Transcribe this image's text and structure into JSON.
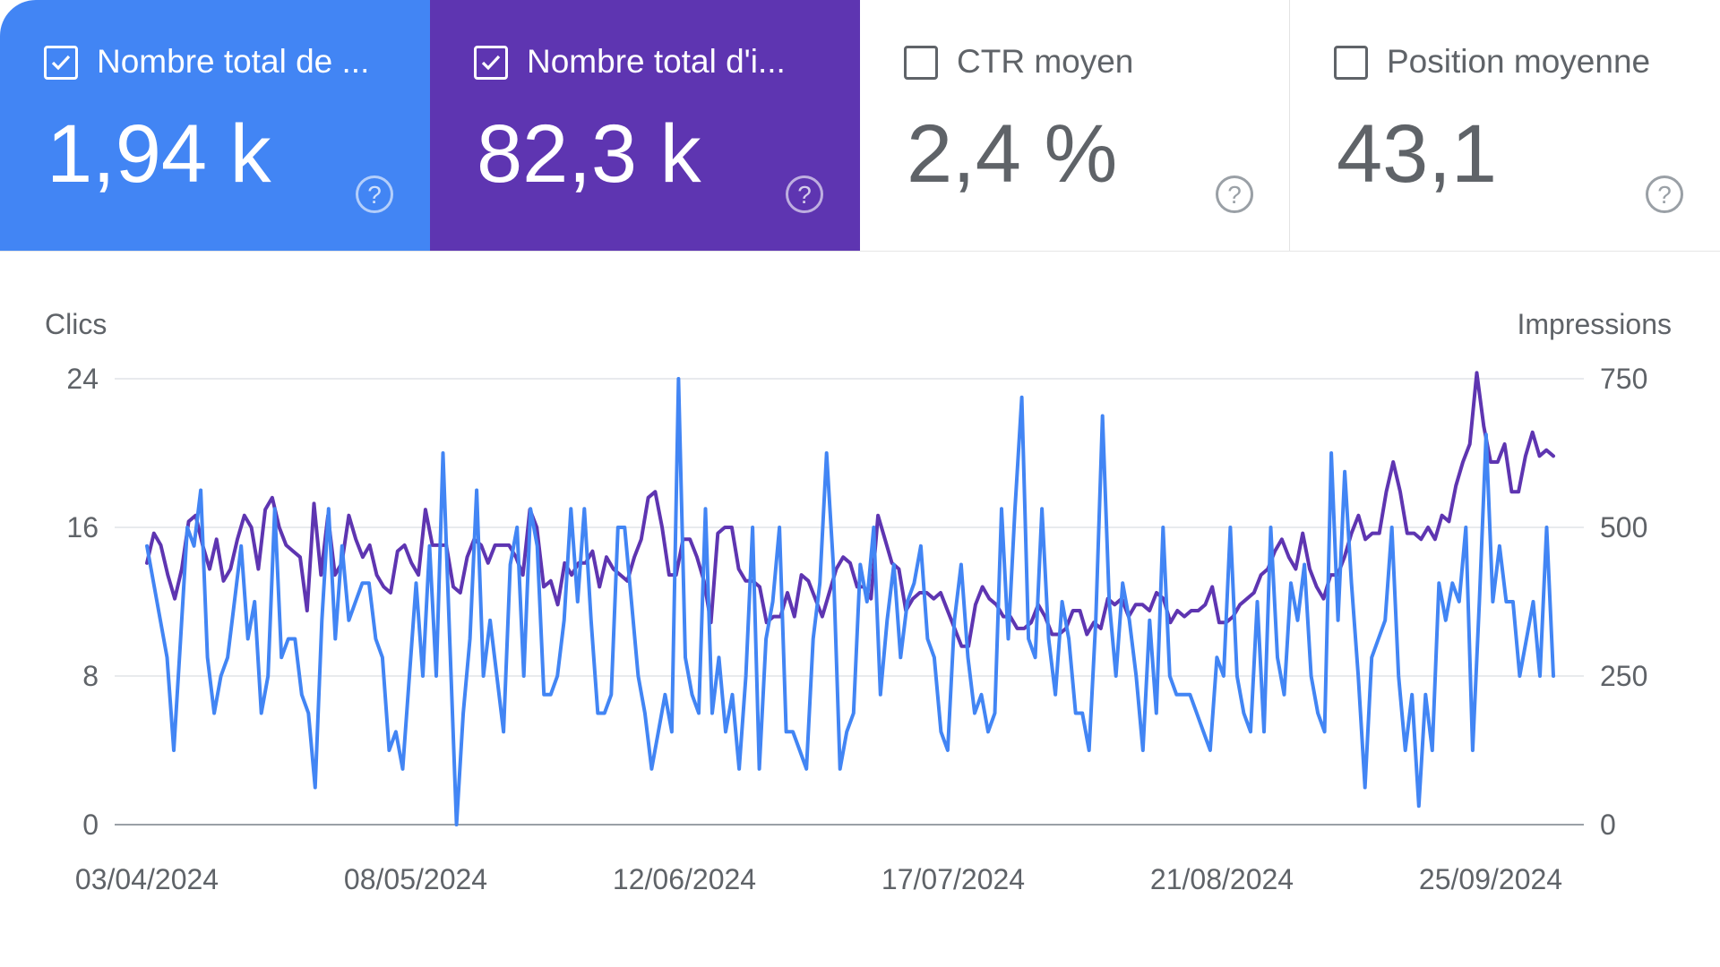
{
  "metrics": [
    {
      "label": "Nombre total de ...",
      "value": "1,94 k",
      "checked": true,
      "color": "#4285f4"
    },
    {
      "label": "Nombre total d'i...",
      "value": "82,3 k",
      "checked": true,
      "color": "#5e35b1"
    },
    {
      "label": "CTR moyen",
      "value": "2,4 %",
      "checked": false
    },
    {
      "label": "Position moyenne",
      "value": "43,1",
      "checked": false
    }
  ],
  "help_icon": "?",
  "chart_data": {
    "type": "line",
    "ylabel_left": "Clics",
    "ylabel_right": "Impressions",
    "y_left_ticks": [
      "0",
      "8",
      "16",
      "24"
    ],
    "y_right_ticks": [
      "0",
      "250",
      "500",
      "750"
    ],
    "ylim_left": [
      0,
      24
    ],
    "ylim_right": [
      0,
      750
    ],
    "x_tick_labels": [
      "03/04/2024",
      "08/05/2024",
      "12/06/2024",
      "17/07/2024",
      "21/08/2024",
      "25/09/2024"
    ],
    "x_start": "2024-04-03",
    "x_end": "2024-10-01",
    "grid": true,
    "series": [
      {
        "axis": "left",
        "color": "#4285f4",
        "values": [
          15,
          13,
          11,
          9,
          4,
          10,
          16,
          15,
          18,
          9,
          6,
          8,
          9,
          12,
          15,
          10,
          12,
          6,
          8,
          17,
          9,
          10,
          10,
          7,
          6,
          2,
          11,
          17,
          10,
          15,
          11,
          12,
          13,
          13,
          10,
          9,
          4,
          5,
          3,
          8,
          13,
          8,
          15,
          8,
          20,
          10,
          0,
          6,
          10,
          18,
          8,
          11,
          8,
          5,
          14,
          16,
          8,
          17,
          15,
          7,
          7,
          8,
          11,
          17,
          12,
          17,
          11,
          6,
          6,
          7,
          16,
          16,
          12,
          8,
          6,
          3,
          5,
          7,
          5,
          24,
          9,
          7,
          6,
          17,
          6,
          9,
          5,
          7,
          3,
          8,
          16,
          3,
          10,
          12,
          16,
          5,
          5,
          4,
          3,
          10,
          13,
          20,
          14,
          3,
          5,
          6,
          14,
          12,
          16,
          7,
          11,
          14,
          9,
          12,
          13,
          15,
          10,
          9,
          5,
          4,
          11,
          14,
          9,
          6,
          7,
          5,
          6,
          17,
          10,
          17,
          23,
          10,
          9,
          17,
          10,
          7,
          12,
          10,
          6,
          6,
          4,
          11,
          22,
          12,
          8,
          13,
          11,
          8,
          4,
          11,
          6,
          16,
          8,
          7,
          7,
          7,
          6,
          5,
          4,
          9,
          8,
          16,
          8,
          6,
          5,
          12,
          5,
          16,
          9,
          7,
          13,
          11,
          14,
          8,
          6,
          5,
          20,
          11,
          19,
          13,
          8,
          2,
          9,
          10,
          11,
          16,
          8,
          4,
          7,
          1,
          7,
          4,
          13,
          11,
          13,
          12,
          16,
          4,
          12,
          21,
          12,
          15,
          12,
          12,
          8,
          10,
          12,
          8,
          16,
          8
        ]
      },
      {
        "axis": "right",
        "color": "#5e35b1",
        "values": [
          440,
          490,
          470,
          420,
          380,
          430,
          510,
          520,
          470,
          430,
          480,
          410,
          430,
          480,
          520,
          500,
          430,
          530,
          550,
          500,
          470,
          460,
          450,
          360,
          540,
          420,
          520,
          420,
          440,
          520,
          480,
          450,
          470,
          420,
          400,
          390,
          460,
          470,
          440,
          420,
          530,
          470,
          470,
          470,
          400,
          390,
          450,
          480,
          470,
          440,
          470,
          470,
          470,
          450,
          420,
          530,
          500,
          400,
          410,
          370,
          440,
          420,
          440,
          440,
          460,
          400,
          450,
          430,
          420,
          410,
          450,
          480,
          550,
          560,
          500,
          420,
          420,
          480,
          480,
          450,
          410,
          340,
          490,
          500,
          500,
          430,
          410,
          410,
          400,
          340,
          350,
          350,
          390,
          350,
          420,
          410,
          380,
          350,
          390,
          430,
          450,
          440,
          400,
          400,
          380,
          520,
          480,
          440,
          430,
          360,
          380,
          390,
          390,
          380,
          390,
          360,
          330,
          300,
          300,
          370,
          400,
          380,
          370,
          350,
          350,
          330,
          330,
          340,
          370,
          350,
          320,
          320,
          330,
          360,
          360,
          320,
          340,
          330,
          380,
          370,
          380,
          350,
          370,
          370,
          360,
          390,
          380,
          340,
          360,
          350,
          360,
          360,
          370,
          400,
          340,
          340,
          350,
          370,
          380,
          390,
          420,
          430,
          460,
          480,
          450,
          430,
          490,
          430,
          400,
          380,
          420,
          420,
          450,
          490,
          520,
          480,
          490,
          490,
          560,
          610,
          560,
          490,
          490,
          480,
          500,
          480,
          520,
          510,
          570,
          610,
          640,
          760,
          670,
          610,
          610,
          640,
          560,
          560,
          620,
          660,
          620,
          630,
          620
        ]
      }
    ]
  }
}
